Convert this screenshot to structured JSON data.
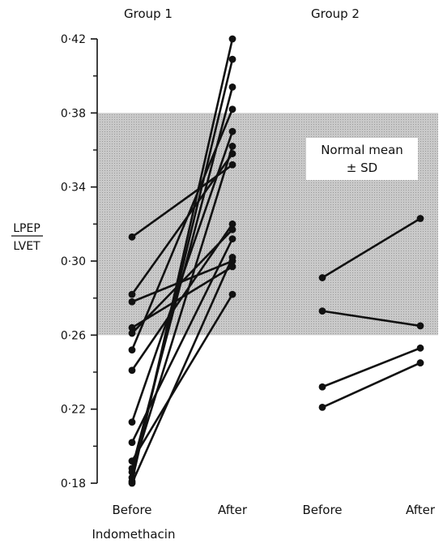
{
  "chart_data": {
    "type": "line",
    "ylabel_top": "LPEP",
    "ylabel_bottom": "LVET",
    "xlabel": "Indomethacin",
    "ylim": [
      0.18,
      0.42
    ],
    "yticks": [
      "0·18",
      "0·22",
      "0·26",
      "0·30",
      "0·34",
      "0·38",
      "0·42"
    ],
    "ytick_values": [
      0.18,
      0.22,
      0.26,
      0.3,
      0.34,
      0.38,
      0.42
    ],
    "categories": [
      "Before",
      "After",
      "Before",
      "After"
    ],
    "groups": [
      {
        "label": "Group 1"
      },
      {
        "label": "Group 2"
      }
    ],
    "band": {
      "lower": 0.26,
      "upper": 0.38,
      "label_line1": "Normal mean",
      "label_line2": "± SD"
    },
    "series": [
      {
        "group": 1,
        "before": 0.313,
        "after": 0.352
      },
      {
        "group": 1,
        "before": 0.282,
        "after": 0.358
      },
      {
        "group": 1,
        "before": 0.278,
        "after": 0.3
      },
      {
        "group": 1,
        "before": 0.264,
        "after": 0.297
      },
      {
        "group": 1,
        "before": 0.261,
        "after": 0.317
      },
      {
        "group": 1,
        "before": 0.252,
        "after": 0.382
      },
      {
        "group": 1,
        "before": 0.241,
        "after": 0.32
      },
      {
        "group": 1,
        "before": 0.213,
        "after": 0.37
      },
      {
        "group": 1,
        "before": 0.202,
        "after": 0.312
      },
      {
        "group": 1,
        "before": 0.192,
        "after": 0.282
      },
      {
        "group": 1,
        "before": 0.188,
        "after": 0.394
      },
      {
        "group": 1,
        "before": 0.186,
        "after": 0.362
      },
      {
        "group": 1,
        "before": 0.183,
        "after": 0.409
      },
      {
        "group": 1,
        "before": 0.181,
        "after": 0.42
      },
      {
        "group": 1,
        "before": 0.18,
        "after": 0.302
      },
      {
        "group": 2,
        "before": 0.291,
        "after": 0.323
      },
      {
        "group": 2,
        "before": 0.273,
        "after": 0.265
      },
      {
        "group": 2,
        "before": 0.232,
        "after": 0.253
      },
      {
        "group": 2,
        "before": 0.221,
        "after": 0.245
      }
    ]
  }
}
